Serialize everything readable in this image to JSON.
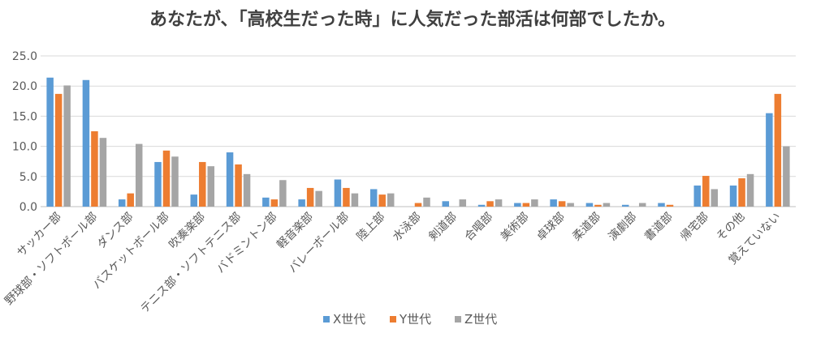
{
  "chart_data": {
    "type": "bar",
    "title": "あなたが、「高校生だった時」に人気だった部活は何部でしたか。",
    "ylim": [
      0,
      25
    ],
    "yticks": [
      "0.0",
      "5.0",
      "10.0",
      "15.0",
      "20.0",
      "25.0"
    ],
    "grid": true,
    "legend_position": "bottom",
    "categories": [
      "サッカー部",
      "野球部・ソフトボール部",
      "ダンス部",
      "バスケットボール部",
      "吹奏楽部",
      "テニス部・ソフトテニス部",
      "バドミントン部",
      "軽音楽部",
      "バレーボール部",
      "陸上部",
      "水泳部",
      "剣道部",
      "合唱部",
      "美術部",
      "卓球部",
      "柔道部",
      "演劇部",
      "書道部",
      "帰宅部",
      "その他",
      "覚えていない"
    ],
    "series": [
      {
        "name": "X世代",
        "color": "#5B9BD5",
        "values": [
          21.4,
          21.0,
          1.2,
          7.4,
          2.0,
          9.0,
          1.5,
          1.2,
          4.5,
          2.9,
          0.0,
          0.9,
          0.3,
          0.6,
          1.2,
          0.6,
          0.3,
          0.6,
          3.5,
          3.5,
          15.5
        ]
      },
      {
        "name": "Y世代",
        "color": "#ED7D31",
        "values": [
          18.7,
          12.5,
          2.2,
          9.3,
          7.4,
          7.0,
          1.2,
          3.1,
          3.1,
          2.0,
          0.6,
          0.0,
          0.9,
          0.6,
          0.9,
          0.3,
          0.0,
          0.3,
          5.1,
          4.7,
          18.7
        ]
      },
      {
        "name": "Z世代",
        "color": "#A5A5A5",
        "values": [
          20.1,
          11.4,
          10.4,
          8.3,
          6.7,
          5.4,
          4.4,
          2.6,
          2.2,
          2.2,
          1.5,
          1.2,
          1.2,
          1.2,
          0.6,
          0.6,
          0.6,
          0.0,
          2.9,
          5.4,
          10.0
        ]
      }
    ]
  }
}
